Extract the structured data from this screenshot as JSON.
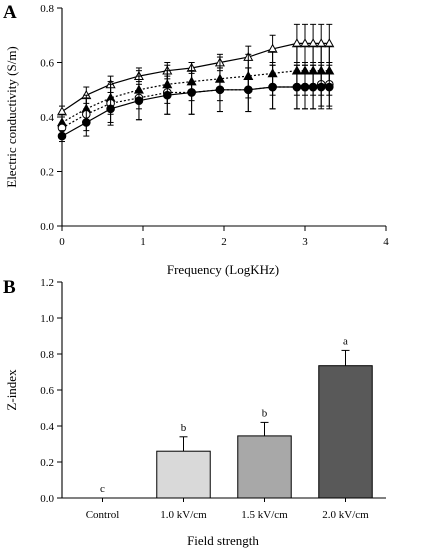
{
  "chart_data": [
    {
      "panel": "A",
      "type": "line",
      "xlabel": "Frequency (LogKHz)",
      "ylabel": "Electric conductivity (S/m)",
      "xlim": [
        0,
        4
      ],
      "ylim": [
        0,
        0.8
      ],
      "xticks": [
        0,
        1,
        2,
        3,
        4
      ],
      "yticks": [
        0.0,
        0.2,
        0.4,
        0.6,
        0.8
      ],
      "xtick_labels": [
        "0",
        "1",
        "2",
        "3",
        "4"
      ],
      "ytick_labels": [
        "0.0",
        "0.2",
        "0.4",
        "0.6",
        "0.8"
      ],
      "series": [
        {
          "marker": "open-triangle",
          "line": "solid",
          "x": [
            0,
            0.3,
            0.6,
            0.95,
            1.3,
            1.6,
            1.95,
            2.3,
            2.6,
            2.9,
            3.0,
            3.1,
            3.2,
            3.3
          ],
          "y": [
            0.42,
            0.48,
            0.52,
            0.55,
            0.57,
            0.58,
            0.6,
            0.62,
            0.65,
            0.67,
            0.67,
            0.67,
            0.67,
            0.67
          ],
          "err": [
            0.02,
            0.03,
            0.03,
            0.03,
            0.03,
            0.02,
            0.03,
            0.04,
            0.05,
            0.07,
            0.07,
            0.07,
            0.07,
            0.07
          ]
        },
        {
          "marker": "filled-triangle",
          "line": "dotted",
          "x": [
            0,
            0.3,
            0.6,
            0.95,
            1.3,
            1.6,
            1.95,
            2.3,
            2.6,
            2.9,
            3.0,
            3.1,
            3.2,
            3.3
          ],
          "y": [
            0.38,
            0.43,
            0.47,
            0.5,
            0.52,
            0.53,
            0.54,
            0.55,
            0.56,
            0.57,
            0.57,
            0.57,
            0.57,
            0.57
          ],
          "err": [
            0.03,
            0.05,
            0.06,
            0.07,
            0.07,
            0.07,
            0.08,
            0.08,
            0.08,
            0.09,
            0.09,
            0.09,
            0.09,
            0.09
          ]
        },
        {
          "marker": "open-circle",
          "line": "dotted",
          "x": [
            0,
            0.3,
            0.6,
            0.95,
            1.3,
            1.6,
            1.95,
            2.3,
            2.6,
            2.9,
            3.0,
            3.1,
            3.2,
            3.3
          ],
          "y": [
            0.36,
            0.41,
            0.45,
            0.47,
            0.49,
            0.49,
            0.5,
            0.5,
            0.51,
            0.51,
            0.51,
            0.51,
            0.52,
            0.52
          ],
          "err": [
            0.04,
            0.06,
            0.07,
            0.08,
            0.08,
            0.08,
            0.08,
            0.08,
            0.08,
            0.08,
            0.08,
            0.08,
            0.08,
            0.08
          ]
        },
        {
          "marker": "filled-circle",
          "line": "solid",
          "x": [
            0,
            0.3,
            0.6,
            0.95,
            1.3,
            1.6,
            1.95,
            2.3,
            2.6,
            2.9,
            3.0,
            3.1,
            3.2,
            3.3
          ],
          "y": [
            0.33,
            0.38,
            0.43,
            0.46,
            0.48,
            0.49,
            0.5,
            0.5,
            0.51,
            0.51,
            0.51,
            0.51,
            0.51,
            0.51
          ],
          "err": [
            0.02,
            0.05,
            0.06,
            0.07,
            0.07,
            0.08,
            0.08,
            0.08,
            0.08,
            0.08,
            0.08,
            0.08,
            0.08,
            0.08
          ]
        }
      ]
    },
    {
      "panel": "B",
      "type": "bar",
      "xlabel": "Field strength",
      "ylabel": "Z-index",
      "ylim": [
        0,
        1.2
      ],
      "yticks": [
        0.0,
        0.2,
        0.4,
        0.6,
        0.8,
        1.0,
        1.2
      ],
      "ytick_labels": [
        "0.0",
        "0.2",
        "0.4",
        "0.6",
        "0.8",
        "1.0",
        "1.2"
      ],
      "categories": [
        "Control",
        "1.0 kV/cm",
        "1.5 kV/cm",
        "2.0 kV/cm"
      ],
      "values": [
        0,
        0.26,
        0.345,
        0.735
      ],
      "err": [
        0,
        0.08,
        0.075,
        0.085
      ],
      "letters": [
        "c",
        "b",
        "b",
        "a"
      ],
      "colors": [
        "#ffffff",
        "#d9d9d9",
        "#a8a8a8",
        "#595959"
      ]
    }
  ],
  "panels": {
    "a_label": "A",
    "b_label": "B"
  }
}
